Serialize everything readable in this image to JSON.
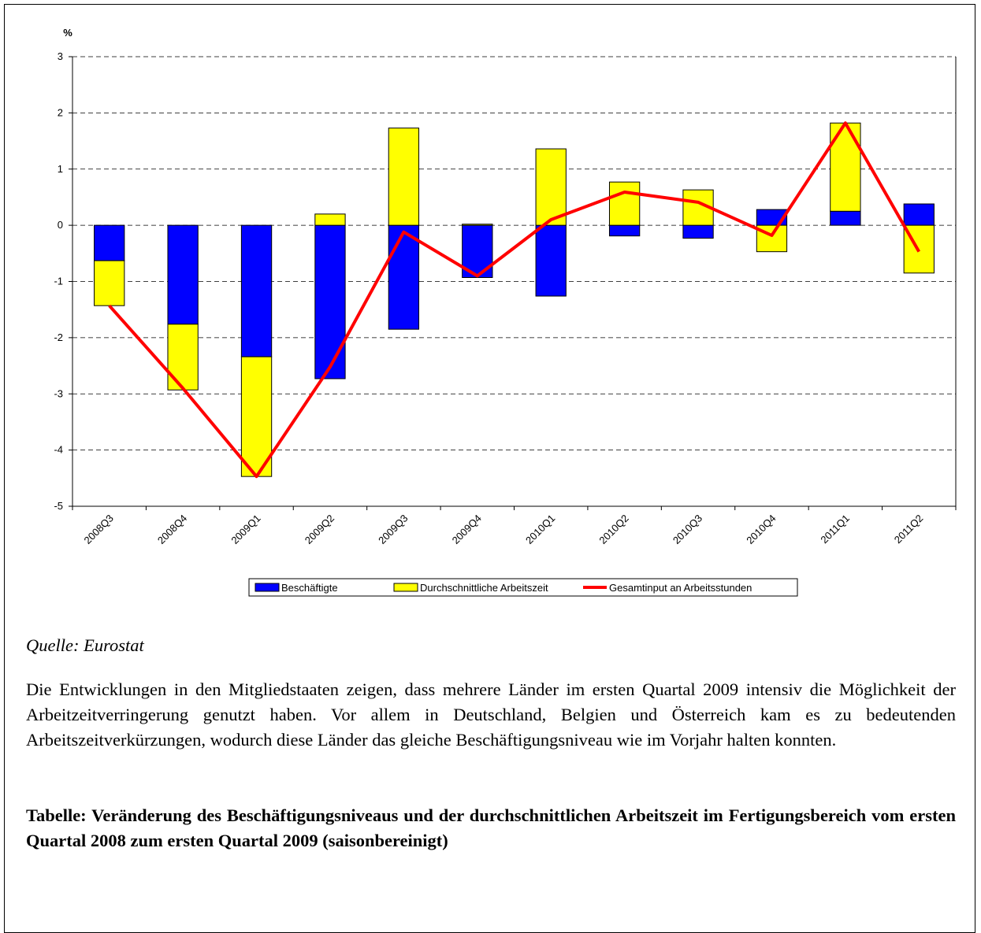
{
  "chart_data": {
    "type": "bar",
    "stacked": true,
    "ylabel": "%",
    "categories": [
      "2008Q3",
      "2008Q4",
      "2009Q1",
      "2009Q2",
      "2009Q3",
      "2009Q4",
      "2010Q1",
      "2010Q2",
      "2010Q3",
      "2010Q4",
      "2011Q1",
      "2011Q2"
    ],
    "series": [
      {
        "name": "Beschäftigte",
        "color": "#0000ff",
        "type": "bar",
        "values": [
          -0.63,
          -1.76,
          -2.34,
          -2.73,
          -1.85,
          -0.93,
          -1.26,
          -0.19,
          -0.23,
          0.28,
          0.25,
          0.38
        ]
      },
      {
        "name": "Durchschnittliche Arbeitszeit",
        "color": "#ffff00",
        "type": "bar",
        "values": [
          -0.8,
          -1.17,
          -2.13,
          0.2,
          1.73,
          0.02,
          1.36,
          0.77,
          0.63,
          -0.47,
          1.57,
          -0.85
        ]
      },
      {
        "name": "Gesamtinput an Arbeitsstunden",
        "color": "#ff0000",
        "type": "line",
        "values": [
          -1.43,
          -2.9,
          -4.47,
          -2.52,
          -0.12,
          -0.9,
          0.1,
          0.59,
          0.41,
          -0.18,
          1.82,
          -0.47
        ]
      }
    ],
    "ylim": [
      -5,
      3
    ],
    "yticks": [
      -5,
      -4,
      -3,
      -2,
      -1,
      0,
      1,
      2,
      3
    ],
    "grid": true,
    "legend": "bottom"
  },
  "source": "Quelle: Eurostat",
  "paragraph": "Die Entwicklungen in den Mitgliedstaaten zeigen, dass mehrere Länder im ersten Quartal 2009 intensiv die Möglichkeit der Arbeitzeitverringerung genutzt haben. Vor allem in Deutschland, Belgien und Österreich kam es zu bedeutenden Arbeitszeitverkürzungen, wodurch diese Länder das gleiche Beschäftigungsniveau wie im Vorjahr halten konnten.",
  "table_title": "Tabelle: Veränderung des Beschäftigungsniveaus und der durchschnittlichen Arbeitszeit im Fertigungsbereich vom ersten Quartal 2008 zum ersten Quartal 2009 (saisonbereinigt)"
}
